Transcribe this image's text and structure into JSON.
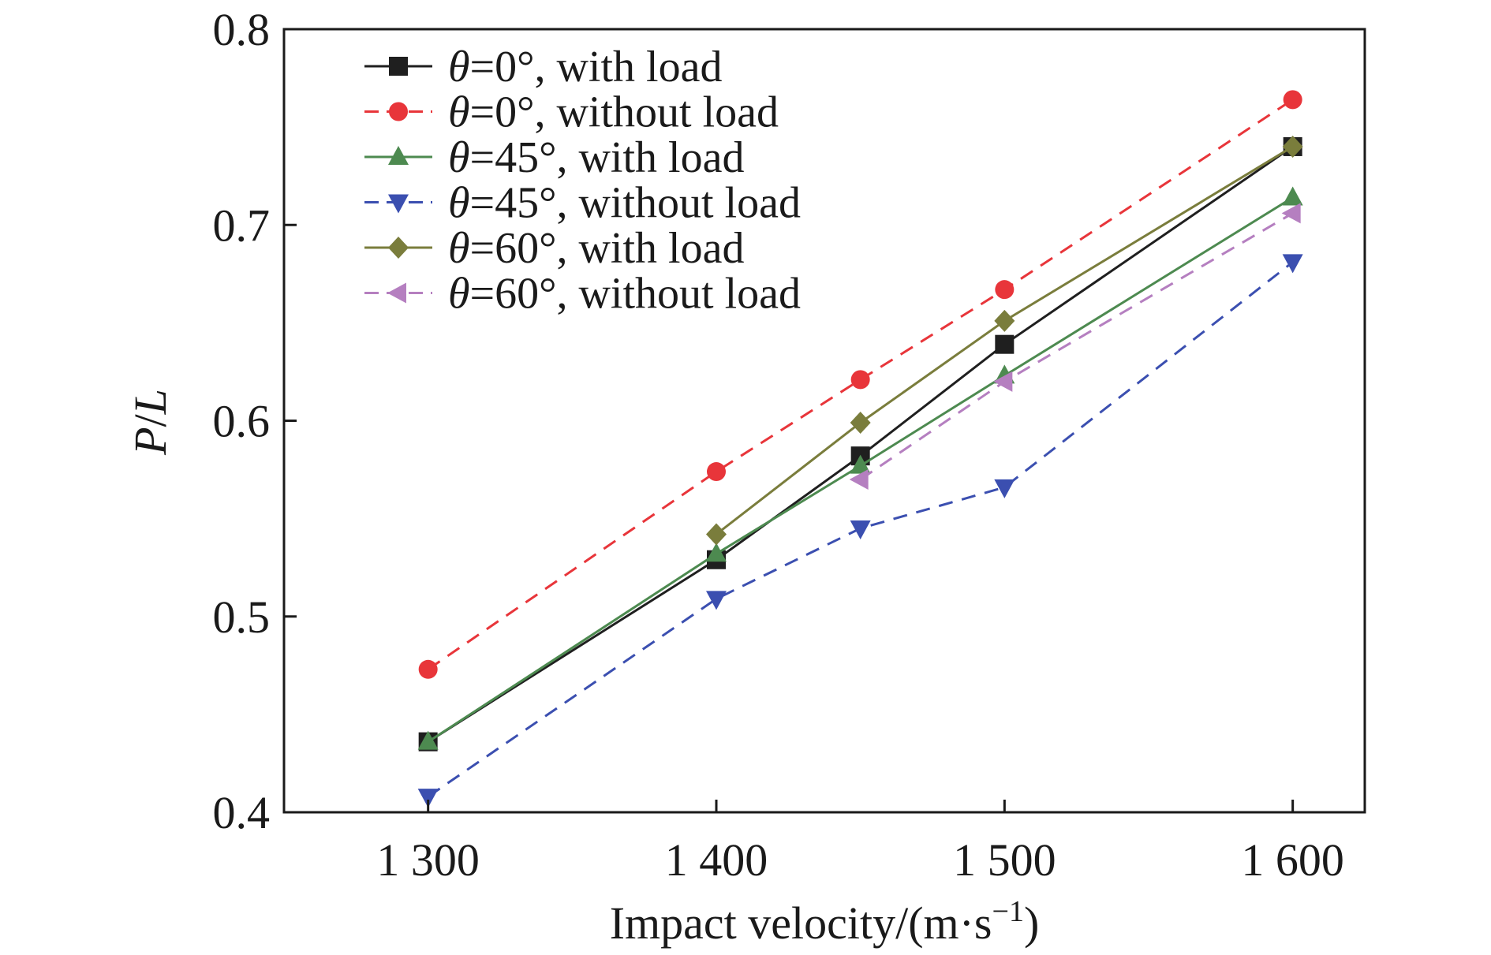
{
  "chart_data": {
    "type": "line",
    "xlabel_main": "Impact velocity/(m·s",
    "xlabel_sup": "−1",
    "xlabel_close": ")",
    "ylabel_p": "P",
    "ylabel_slash": "/",
    "ylabel_l": "L",
    "xlim": [
      1250,
      1625
    ],
    "ylim": [
      0.4,
      0.8
    ],
    "xticks": [
      {
        "value": 1300,
        "label": "1 300"
      },
      {
        "value": 1400,
        "label": "1 400"
      },
      {
        "value": 1500,
        "label": "1 500"
      },
      {
        "value": 1600,
        "label": "1 600"
      }
    ],
    "yticks": [
      {
        "value": 0.4,
        "label": "0.4"
      },
      {
        "value": 0.5,
        "label": "0.5"
      },
      {
        "value": 0.6,
        "label": "0.6"
      },
      {
        "value": 0.7,
        "label": "0.7"
      },
      {
        "value": 0.8,
        "label": "0.8"
      }
    ],
    "x": [
      1300,
      1400,
      1450,
      1500,
      1600
    ],
    "legend_position": "top-left",
    "series": [
      {
        "name": "θ=0°, with load",
        "theta": "θ",
        "rest": "=0°, with load",
        "values": [
          0.436,
          0.529,
          0.582,
          0.639,
          0.74
        ],
        "color": "#1f1f1f",
        "marker": "square",
        "dashed": false
      },
      {
        "name": "θ=0°, without load",
        "theta": "θ",
        "rest": "=0°, without load",
        "values": [
          0.473,
          0.574,
          0.621,
          0.667,
          0.764
        ],
        "color": "#e8353a",
        "marker": "circle",
        "dashed": true
      },
      {
        "name": "θ=45°, with load",
        "theta": "θ",
        "rest": "=45°, with load",
        "values": [
          0.436,
          0.532,
          0.577,
          0.623,
          0.714
        ],
        "color": "#4d8a50",
        "marker": "triangle-up",
        "dashed": false
      },
      {
        "name": "θ=45°, without load",
        "theta": "θ",
        "rest": "=45°, without load",
        "values": [
          0.408,
          0.509,
          0.545,
          0.566,
          0.681
        ],
        "color": "#3b4fb0",
        "marker": "triangle-down",
        "dashed": true
      },
      {
        "name": "θ=60°, with load",
        "theta": "θ",
        "rest": "=60°, with load",
        "values": [
          null,
          0.542,
          0.599,
          0.651,
          0.74
        ],
        "color": "#7a7d3c",
        "marker": "diamond",
        "dashed": false
      },
      {
        "name": "θ=60°, without load",
        "theta": "θ",
        "rest": "=60°, without load",
        "values": [
          null,
          null,
          0.57,
          0.62,
          0.706
        ],
        "color": "#b57fc0",
        "marker": "triangle-left",
        "dashed": true
      }
    ]
  }
}
